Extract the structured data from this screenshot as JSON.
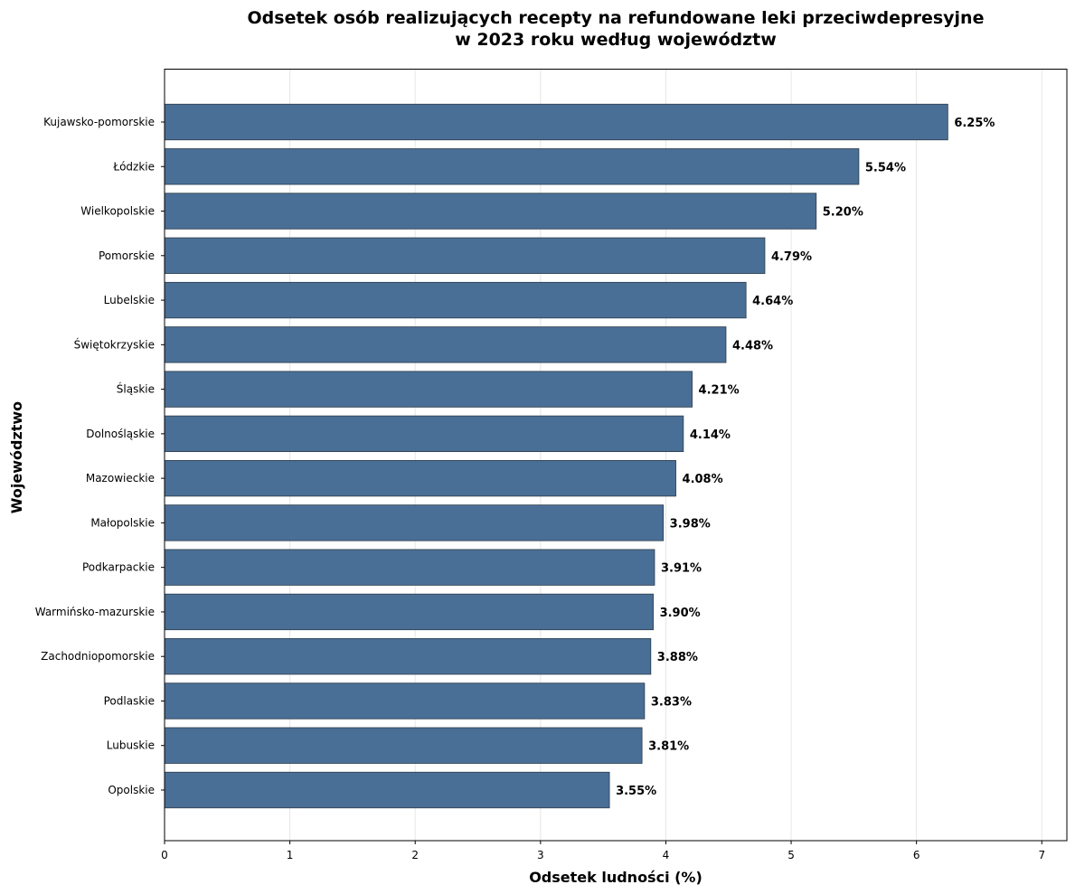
{
  "chart_data": {
    "type": "bar",
    "orientation": "horizontal",
    "title_line1": "Odsetek osób realizujących recepty na refundowane leki przeciwdepresyjne",
    "title_line2": "w 2023 roku według województw",
    "xlabel": "Odsetek ludności (%)",
    "ylabel": "Województwo",
    "xlim": [
      0,
      7.2
    ],
    "xticks": [
      "0",
      "1",
      "2",
      "3",
      "4",
      "5",
      "6",
      "7"
    ],
    "grid": "x-axis vertical lines",
    "bar_color": "#4a6f96",
    "categories": [
      "Kujawsko-pomorskie",
      "Łódzkie",
      "Wielkopolskie",
      "Pomorskie",
      "Lubelskie",
      "Świętokrzyskie",
      "Śląskie",
      "Dolnośląskie",
      "Mazowieckie",
      "Małopolskie",
      "Podkarpackie",
      "Warmińsko-mazurskie",
      "Zachodniopomorskie",
      "Podlaskie",
      "Lubuskie",
      "Opolskie"
    ],
    "values": [
      6.25,
      5.54,
      5.2,
      4.79,
      4.64,
      4.48,
      4.21,
      4.14,
      4.08,
      3.98,
      3.91,
      3.9,
      3.88,
      3.83,
      3.81,
      3.55
    ],
    "value_labels": [
      "6.25%",
      "5.54%",
      "5.20%",
      "4.79%",
      "4.64%",
      "4.48%",
      "4.21%",
      "4.14%",
      "4.08%",
      "3.98%",
      "3.91%",
      "3.90%",
      "3.88%",
      "3.83%",
      "3.81%",
      "3.55%"
    ]
  }
}
